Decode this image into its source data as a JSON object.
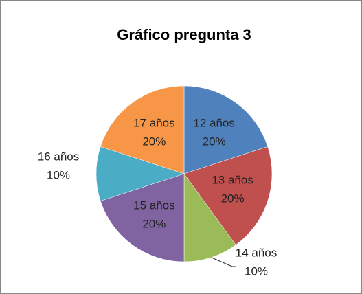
{
  "chart_data": {
    "type": "pie",
    "title": "Gráfico pregunta 3",
    "categories": [
      "12 años",
      "13 años",
      "14 años",
      "15 años",
      "16 años",
      "17 años"
    ],
    "values": [
      20,
      20,
      10,
      20,
      10,
      20
    ],
    "value_labels": [
      "20%",
      "20%",
      "10%",
      "20%",
      "10%",
      "20%"
    ],
    "colors": [
      "#4f81bd",
      "#c0504d",
      "#9bbb59",
      "#8064a2",
      "#4bacc6",
      "#f79646"
    ]
  }
}
